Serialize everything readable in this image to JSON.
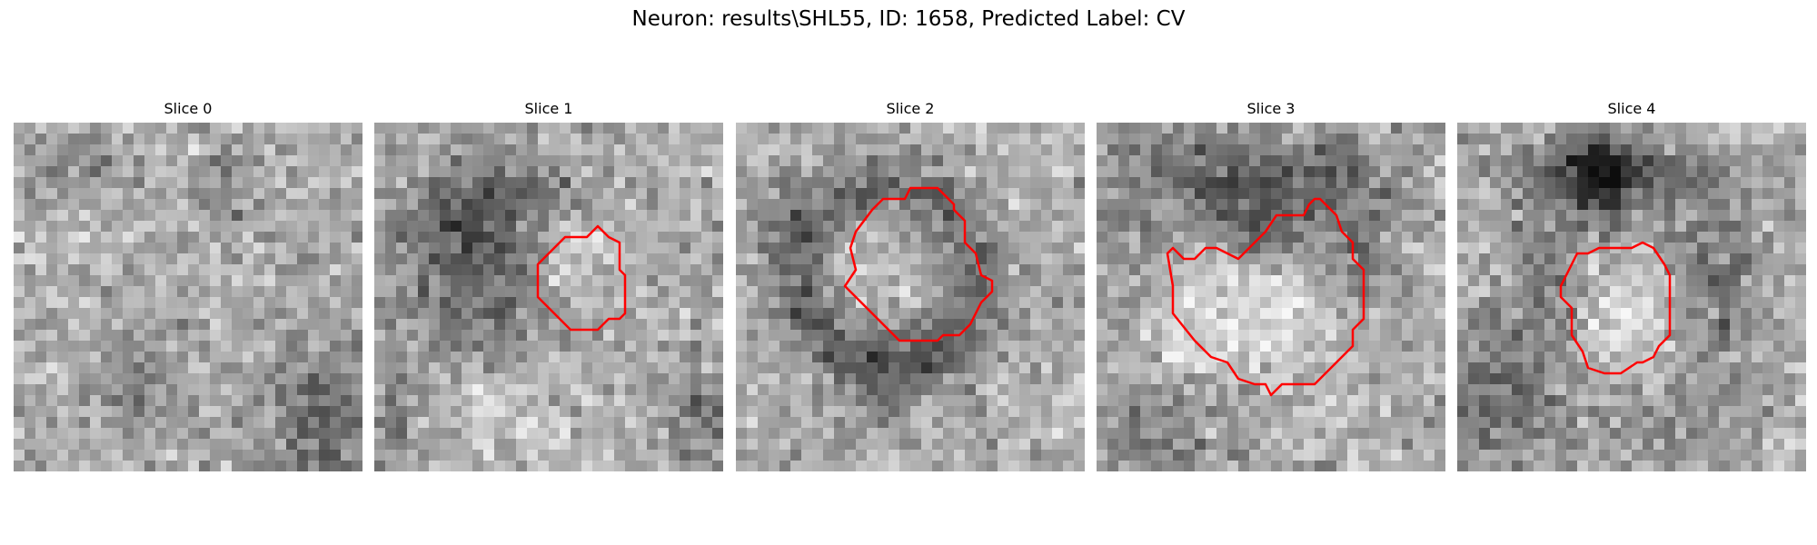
{
  "figure": {
    "title": "Neuron: results\\SHL55, ID: 1658, Predicted Label: CV"
  },
  "colors": {
    "background": "#ffffff",
    "contour": "#ff0000"
  },
  "slices": [
    {
      "label": "Slice 0",
      "has_contour": false,
      "appearance": "noisy grayscale texture, darker in lower-right corner"
    },
    {
      "label": "Slice 1",
      "has_contour": true,
      "appearance": "noisy grayscale texture with dark blob at left-center, red outline right of center"
    },
    {
      "label": "Slice 2",
      "has_contour": true,
      "appearance": "noisy grayscale texture with dark ring, red outline in center"
    },
    {
      "label": "Slice 3",
      "has_contour": true,
      "appearance": "noisy grayscale texture with dark band at top, bright region enclosed by red outline"
    },
    {
      "label": "Slice 4",
      "has_contour": true,
      "appearance": "noisy grayscale texture with dark cross shape at top, red outline lower-right"
    }
  ]
}
